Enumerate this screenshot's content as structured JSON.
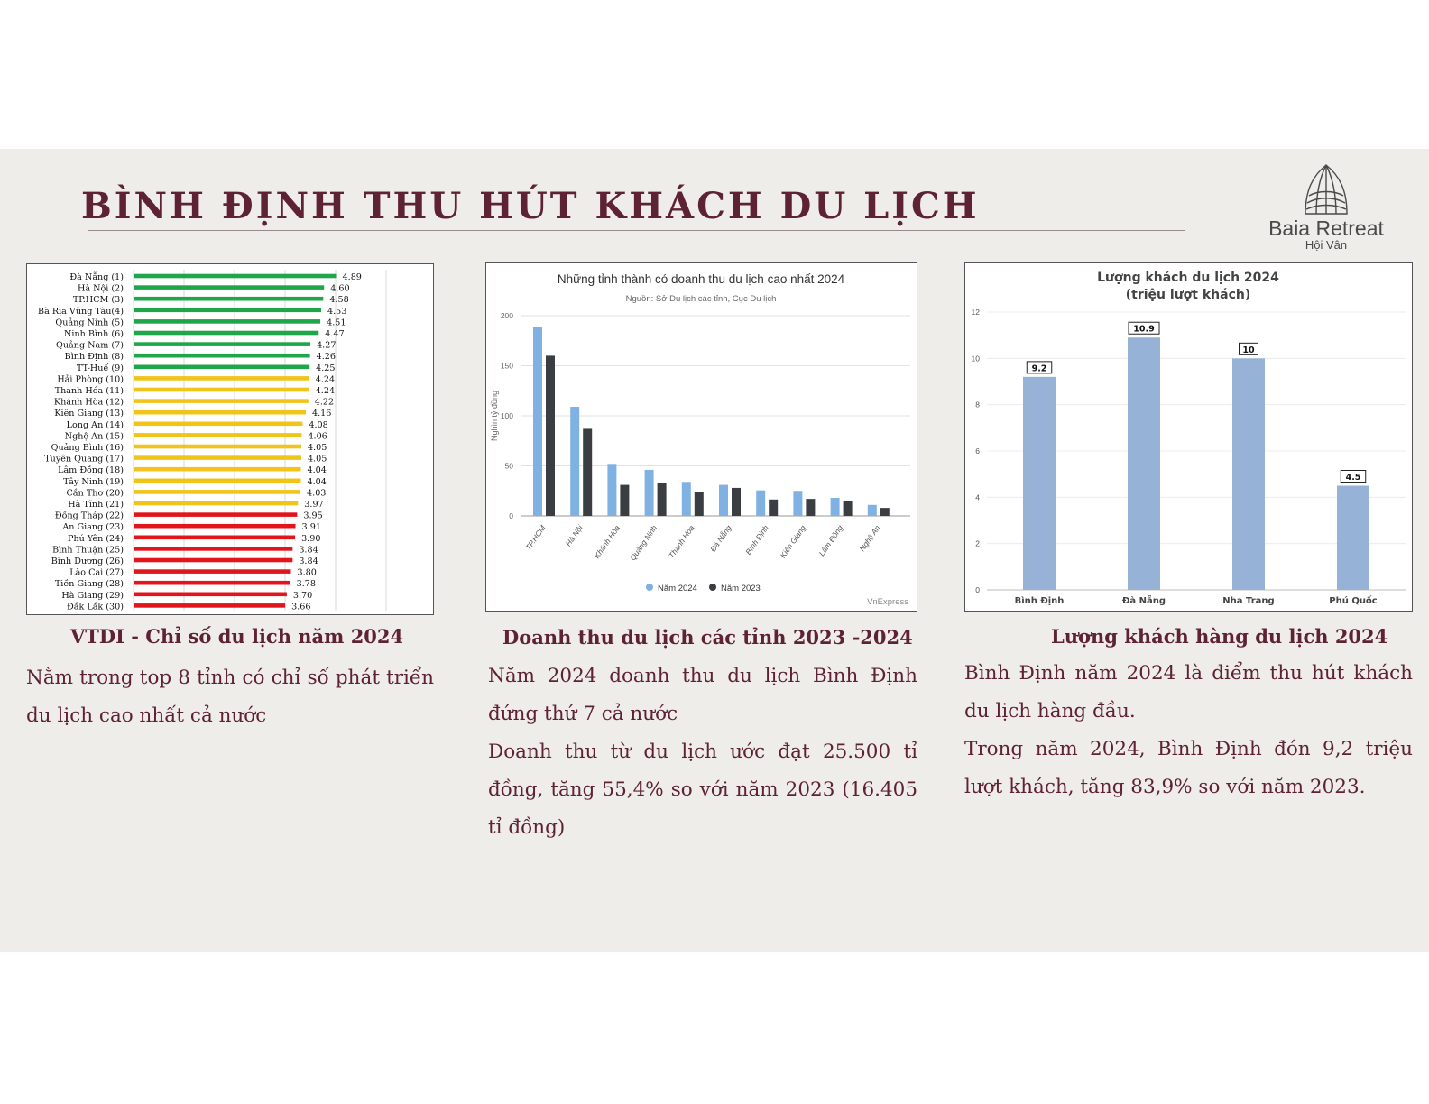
{
  "page": {
    "title": "BÌNH ĐỊNH THU HÚT KHÁCH DU LỊCH",
    "logo": {
      "name": "Baia Retreat",
      "sub": "Hội Vân",
      "icon": "lotus-shell-icon"
    },
    "colors": {
      "title": "#5e2235",
      "green": "#1fa64a",
      "yellow": "#f0c419",
      "red": "#e0161c",
      "blue2024": "#7fb2e2",
      "dark2023": "#3a3d42",
      "visitors": "#96b2d6"
    }
  },
  "sections": [
    {
      "caption": "VTDI - Chỉ số du lịch năm 2024",
      "paragraphs": [
        "Nằm trong top 8 tỉnh có chỉ số phát triển du lịch cao nhất cả nước"
      ]
    },
    {
      "caption": "Doanh thu du lịch các tỉnh 2023 -2024",
      "paragraphs": [
        "Năm 2024 doanh thu du lịch Bình Định đứng thứ 7 cả nước",
        "Doanh thu từ du lịch ước đạt 25.500 tỉ đồng, tăng 55,4% so với năm 2023 (16.405 tỉ đồng)"
      ]
    },
    {
      "caption": "Lượng khách hàng du lịch 2024",
      "paragraphs": [
        "Bình Định năm 2024 là điểm thu hút khách du lịch hàng đầu.",
        "Trong năm 2024, Bình Định đón 9,2 triệu lượt khách, tăng 83,9% so với năm 2023."
      ]
    }
  ],
  "chart_data": [
    {
      "type": "bar",
      "orientation": "horizontal",
      "title": "",
      "categories": [
        "Đà Nẵng (1)",
        "Hà Nội (2)",
        "TP.HCM (3)",
        "Bà Rịa Vũng Tàu(4)",
        "Quảng Ninh (5)",
        "Ninh Bình (6)",
        "Quảng Nam (7)",
        "Bình Định (8)",
        "TT-Huế (9)",
        "Hải Phòng (10)",
        "Thanh Hóa (11)",
        "Khánh Hòa (12)",
        "Kiên Giang (13)",
        "Long An (14)",
        "Nghệ An (15)",
        "Quảng Bình (16)",
        "Tuyên Quang (17)",
        "Lâm Đồng (18)",
        "Tây Ninh (19)",
        "Cần Thơ (20)",
        "Hà Tĩnh (21)",
        "Đồng Tháp (22)",
        "An Giang (23)",
        "Phú Yên (24)",
        "Bình Thuận (25)",
        "Bình Dương (26)",
        "Lào Cai (27)",
        "Tiền Giang (28)",
        "Hà Giang (29)",
        "Đắk Lắk (30)"
      ],
      "values": [
        4.89,
        4.6,
        4.58,
        4.53,
        4.51,
        4.47,
        4.27,
        4.26,
        4.25,
        4.24,
        4.24,
        4.22,
        4.16,
        4.08,
        4.06,
        4.05,
        4.05,
        4.04,
        4.04,
        4.03,
        3.97,
        3.95,
        3.91,
        3.9,
        3.84,
        3.84,
        3.8,
        3.78,
        3.7,
        3.66
      ],
      "value_labels": [
        "4.89",
        "4.60",
        "4.58",
        "4.53",
        "4.51",
        "4.47",
        "4.27",
        "4.26",
        "4.25",
        "4.24",
        "4.24",
        "4.22",
        "4.16",
        "4.08",
        "4.06",
        "4.05",
        "4.05",
        "4.04",
        "4.04",
        "4.03",
        "3.97",
        "3.95",
        "3.91",
        "3.90",
        "3.84",
        "3.84",
        "3.80",
        "3.78",
        "3.70",
        "3.66"
      ],
      "bar_colors": [
        "green",
        "green",
        "green",
        "green",
        "green",
        "green",
        "green",
        "green",
        "green",
        "yellow",
        "yellow",
        "yellow",
        "yellow",
        "yellow",
        "yellow",
        "yellow",
        "yellow",
        "yellow",
        "yellow",
        "yellow",
        "yellow",
        "red",
        "red",
        "red",
        "red",
        "red",
        "red",
        "red",
        "red",
        "red"
      ],
      "xlim": [
        0,
        5
      ],
      "grid": true,
      "legend": "none"
    },
    {
      "type": "bar",
      "title": "Những tỉnh thành có doanh thu du lịch cao nhất 2024",
      "subtitle": "Nguồn: Sở Du lịch các tỉnh, Cục Du lịch",
      "ylabel": "Nghìn tỷ đồng",
      "categories": [
        "TP.HCM",
        "Hà Nội",
        "Khánh Hòa",
        "Quảng Ninh",
        "Thanh Hóa",
        "Đà Nẵng",
        "Bình Định",
        "Kiên Giang",
        "Lâm Đồng",
        "Nghệ An"
      ],
      "series": [
        {
          "name": "Năm 2024",
          "color": "#7fb2e2",
          "values": [
            189,
            109,
            52,
            46,
            34,
            31,
            25.5,
            25,
            18,
            11
          ]
        },
        {
          "name": "Năm 2023",
          "color": "#3a3d42",
          "values": [
            160,
            87,
            31,
            33,
            24,
            28,
            16.4,
            17,
            15,
            8
          ]
        }
      ],
      "ylim": [
        0,
        200
      ],
      "yticks": [
        "0",
        "50",
        "100",
        "150",
        "200"
      ],
      "grid": true,
      "legend": "bottom",
      "source": "VnExpress"
    },
    {
      "type": "bar",
      "title": "Lượng khách du lịch 2024",
      "subtitle": "(triệu lượt khách)",
      "categories": [
        "Bình Định",
        "Đà Nẵng",
        "Nha Trang",
        "Phú Quốc"
      ],
      "values": [
        9.2,
        10.9,
        10,
        4.5
      ],
      "value_labels": [
        "9.2",
        "10.9",
        "10",
        "4.5"
      ],
      "ylim": [
        0,
        12
      ],
      "yticks": [
        "0",
        "2",
        "4",
        "6",
        "8",
        "10",
        "12"
      ],
      "grid": true,
      "legend": "none"
    }
  ]
}
